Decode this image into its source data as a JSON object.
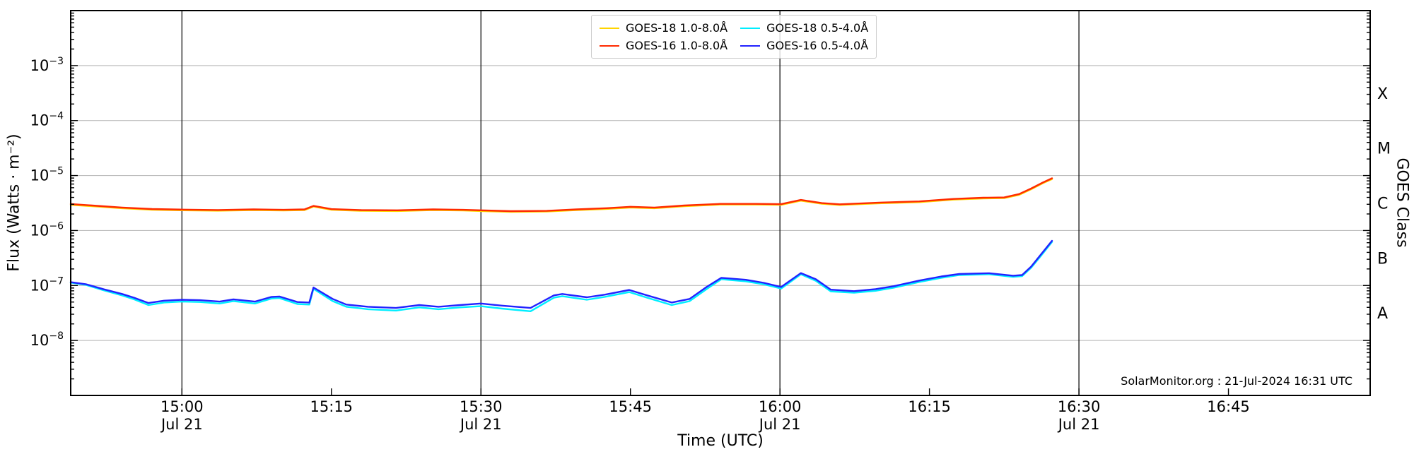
{
  "watermark": "SolarMonitor.org : 21-Jul-2024 16:31 UTC",
  "axes": {
    "x_label": "Time (UTC)",
    "y_left_label": "Flux (Watts · m⁻²)",
    "y_right_label": "GOES Class",
    "x_range_hours": [
      14.814,
      16.987
    ],
    "y_range_log10": [
      -9,
      -2
    ],
    "x_ticks": [
      {
        "hour": 15.0,
        "label": "15:00",
        "sub": "Jul 21"
      },
      {
        "hour": 15.25,
        "label": "15:15",
        "sub": ""
      },
      {
        "hour": 15.5,
        "label": "15:30",
        "sub": "Jul 21"
      },
      {
        "hour": 15.75,
        "label": "15:45",
        "sub": ""
      },
      {
        "hour": 16.0,
        "label": "16:00",
        "sub": "Jul 21"
      },
      {
        "hour": 16.25,
        "label": "16:15",
        "sub": ""
      },
      {
        "hour": 16.5,
        "label": "16:30",
        "sub": "Jul 21"
      },
      {
        "hour": 16.75,
        "label": "16:45",
        "sub": ""
      }
    ],
    "y_tick_exponents": [
      -3,
      -4,
      -5,
      -6,
      -7,
      -8
    ],
    "vertical_gridline_hours": [
      15.0,
      15.5,
      16.0,
      16.5
    ],
    "right_classes": [
      {
        "label": "X",
        "log10_mid": -3.5
      },
      {
        "label": "M",
        "log10_mid": -4.5
      },
      {
        "label": "C",
        "log10_mid": -5.5
      },
      {
        "label": "B",
        "log10_mid": -6.5
      },
      {
        "label": "A",
        "log10_mid": -7.5
      }
    ]
  },
  "colors": {
    "grid_horizontal": "#b3b3b3",
    "grid_vertical": "#111111",
    "spine": "#000000",
    "goes18_long": "#ffd400",
    "goes16_long": "#ff2a00",
    "goes18_short": "#00eeff",
    "goes16_short": "#2222ff"
  },
  "legend": {
    "entries": [
      {
        "label": "GOES-18 1.0-8.0Å",
        "color": "#ffd400"
      },
      {
        "label": "GOES-16 1.0-8.0Å",
        "color": "#ff2a00"
      },
      {
        "label": "GOES-18 0.5-4.0Å",
        "color": "#00eeff"
      },
      {
        "label": "GOES-16 0.5-4.0Å",
        "color": "#2222ff"
      }
    ]
  },
  "chart_data": {
    "type": "line",
    "title": "",
    "xlabel": "Time (UTC)",
    "ylabel": "Flux (Watts · m⁻²)",
    "x_unit": "decimal_hours_utc_2024-07-21",
    "y_scale": "log",
    "xlim_hours": [
      14.814,
      16.987
    ],
    "ylim": [
      1e-09,
      0.01
    ],
    "grid": "horizontal_decades_plus_halfhour_verticals",
    "legend_position": "top-center",
    "series": [
      {
        "name": "GOES-18 1.0-8.0Å",
        "color": "#ffd400",
        "points": [
          [
            14.814,
            2.94e-06
          ],
          [
            14.85,
            2.76e-06
          ],
          [
            14.9,
            2.54e-06
          ],
          [
            14.95,
            2.39e-06
          ],
          [
            15.0,
            2.33e-06
          ],
          [
            15.06,
            2.29e-06
          ],
          [
            15.12,
            2.35e-06
          ],
          [
            15.17,
            2.31e-06
          ],
          [
            15.205,
            2.35e-06
          ],
          [
            15.22,
            2.72e-06
          ],
          [
            15.25,
            2.38e-06
          ],
          [
            15.3,
            2.28e-06
          ],
          [
            15.36,
            2.26e-06
          ],
          [
            15.42,
            2.35e-06
          ],
          [
            15.47,
            2.31e-06
          ],
          [
            15.5,
            2.26e-06
          ],
          [
            15.55,
            2.18e-06
          ],
          [
            15.61,
            2.21e-06
          ],
          [
            15.66,
            2.35e-06
          ],
          [
            15.71,
            2.47e-06
          ],
          [
            15.75,
            2.62e-06
          ],
          [
            15.79,
            2.54e-06
          ],
          [
            15.84,
            2.76e-06
          ],
          [
            15.9,
            2.96e-06
          ],
          [
            15.96,
            2.96e-06
          ],
          [
            16.002,
            2.93e-06
          ],
          [
            16.035,
            3.49e-06
          ],
          [
            16.07,
            3.06e-06
          ],
          [
            16.1,
            2.91e-06
          ],
          [
            16.17,
            3.13e-06
          ],
          [
            16.233,
            3.28e-06
          ],
          [
            16.29,
            3.64e-06
          ],
          [
            16.34,
            3.83e-06
          ],
          [
            16.375,
            3.88e-06
          ],
          [
            16.4,
            4.46e-06
          ],
          [
            16.42,
            5.63e-06
          ],
          [
            16.44,
            7.28e-06
          ],
          [
            16.455,
            8.63e-06
          ]
        ]
      },
      {
        "name": "GOES-16 1.0-8.0Å",
        "color": "#ff2a00",
        "points": [
          [
            14.814,
            3.03e-06
          ],
          [
            14.85,
            2.85e-06
          ],
          [
            14.9,
            2.62e-06
          ],
          [
            14.95,
            2.46e-06
          ],
          [
            15.0,
            2.4e-06
          ],
          [
            15.06,
            2.36e-06
          ],
          [
            15.12,
            2.42e-06
          ],
          [
            15.17,
            2.38e-06
          ],
          [
            15.205,
            2.42e-06
          ],
          [
            15.22,
            2.8e-06
          ],
          [
            15.25,
            2.45e-06
          ],
          [
            15.3,
            2.35e-06
          ],
          [
            15.36,
            2.33e-06
          ],
          [
            15.42,
            2.42e-06
          ],
          [
            15.47,
            2.38e-06
          ],
          [
            15.5,
            2.33e-06
          ],
          [
            15.55,
            2.25e-06
          ],
          [
            15.61,
            2.28e-06
          ],
          [
            15.66,
            2.42e-06
          ],
          [
            15.71,
            2.55e-06
          ],
          [
            15.75,
            2.7e-06
          ],
          [
            15.79,
            2.62e-06
          ],
          [
            15.84,
            2.85e-06
          ],
          [
            15.9,
            3.05e-06
          ],
          [
            15.96,
            3.05e-06
          ],
          [
            16.002,
            3.02e-06
          ],
          [
            16.035,
            3.6e-06
          ],
          [
            16.07,
            3.15e-06
          ],
          [
            16.1,
            3e-06
          ],
          [
            16.17,
            3.23e-06
          ],
          [
            16.233,
            3.38e-06
          ],
          [
            16.29,
            3.75e-06
          ],
          [
            16.34,
            3.95e-06
          ],
          [
            16.375,
            4e-06
          ],
          [
            16.4,
            4.6e-06
          ],
          [
            16.42,
            5.8e-06
          ],
          [
            16.44,
            7.5e-06
          ],
          [
            16.455,
            8.9e-06
          ]
        ]
      },
      {
        "name": "GOES-18 0.5-4.0Å",
        "color": "#00eeff",
        "points": [
          [
            14.814,
            1.13e-07
          ],
          [
            14.84,
            1.02e-07
          ],
          [
            14.87,
            8.1e-08
          ],
          [
            14.9,
            6.6e-08
          ],
          [
            14.92,
            5.6e-08
          ],
          [
            14.944,
            4.4e-08
          ],
          [
            14.97,
            4.9e-08
          ],
          [
            15.0,
            5.1e-08
          ],
          [
            15.03,
            5e-08
          ],
          [
            15.063,
            4.7e-08
          ],
          [
            15.086,
            5.2e-08
          ],
          [
            15.122,
            4.7e-08
          ],
          [
            15.15,
            5.8e-08
          ],
          [
            15.163,
            5.9e-08
          ],
          [
            15.193,
            4.6e-08
          ],
          [
            15.213,
            4.5e-08
          ],
          [
            15.22,
            8.7e-08
          ],
          [
            15.252,
            5.2e-08
          ],
          [
            15.275,
            4.1e-08
          ],
          [
            15.311,
            3.7e-08
          ],
          [
            15.358,
            3.5e-08
          ],
          [
            15.397,
            4e-08
          ],
          [
            15.429,
            3.7e-08
          ],
          [
            15.465,
            4e-08
          ],
          [
            15.5,
            4.2e-08
          ],
          [
            15.535,
            3.8e-08
          ],
          [
            15.583,
            3.4e-08
          ],
          [
            15.622,
            6e-08
          ],
          [
            15.636,
            6.4e-08
          ],
          [
            15.677,
            5.5e-08
          ],
          [
            15.707,
            6.2e-08
          ],
          [
            15.748,
            7.6e-08
          ],
          [
            15.778,
            6e-08
          ],
          [
            15.819,
            4.4e-08
          ],
          [
            15.849,
            5.2e-08
          ],
          [
            15.878,
            8.7e-08
          ],
          [
            15.902,
            1.3e-07
          ],
          [
            15.943,
            1.19e-07
          ],
          [
            15.973,
            1.05e-07
          ],
          [
            16.002,
            8.8e-08
          ],
          [
            16.035,
            1.6e-07
          ],
          [
            16.06,
            1.22e-07
          ],
          [
            16.085,
            7.8e-08
          ],
          [
            16.124,
            7.4e-08
          ],
          [
            16.16,
            8e-08
          ],
          [
            16.19,
            9.1e-08
          ],
          [
            16.233,
            1.16e-07
          ],
          [
            16.27,
            1.38e-07
          ],
          [
            16.3,
            1.55e-07
          ],
          [
            16.35,
            1.6e-07
          ],
          [
            16.39,
            1.44e-07
          ],
          [
            16.405,
            1.48e-07
          ],
          [
            16.42,
            2.1e-07
          ],
          [
            16.435,
            3.3e-07
          ],
          [
            16.455,
            6.2e-07
          ]
        ]
      },
      {
        "name": "GOES-16 0.5-4.0Å",
        "color": "#2222ff",
        "points": [
          [
            14.814,
            1.15e-07
          ],
          [
            14.84,
            1.05e-07
          ],
          [
            14.87,
            8.5e-08
          ],
          [
            14.9,
            7e-08
          ],
          [
            14.92,
            6e-08
          ],
          [
            14.944,
            4.8e-08
          ],
          [
            14.97,
            5.3e-08
          ],
          [
            15.0,
            5.5e-08
          ],
          [
            15.03,
            5.4e-08
          ],
          [
            15.063,
            5.1e-08
          ],
          [
            15.086,
            5.6e-08
          ],
          [
            15.122,
            5.1e-08
          ],
          [
            15.15,
            6.2e-08
          ],
          [
            15.163,
            6.3e-08
          ],
          [
            15.193,
            5e-08
          ],
          [
            15.213,
            4.9e-08
          ],
          [
            15.22,
            9.2e-08
          ],
          [
            15.252,
            5.7e-08
          ],
          [
            15.275,
            4.5e-08
          ],
          [
            15.311,
            4.1e-08
          ],
          [
            15.358,
            3.9e-08
          ],
          [
            15.397,
            4.4e-08
          ],
          [
            15.429,
            4.1e-08
          ],
          [
            15.465,
            4.4e-08
          ],
          [
            15.5,
            4.7e-08
          ],
          [
            15.535,
            4.3e-08
          ],
          [
            15.583,
            3.9e-08
          ],
          [
            15.622,
            6.6e-08
          ],
          [
            15.636,
            7e-08
          ],
          [
            15.677,
            6.1e-08
          ],
          [
            15.707,
            6.8e-08
          ],
          [
            15.748,
            8.3e-08
          ],
          [
            15.778,
            6.6e-08
          ],
          [
            15.819,
            4.9e-08
          ],
          [
            15.849,
            5.7e-08
          ],
          [
            15.878,
            9.5e-08
          ],
          [
            15.902,
            1.38e-07
          ],
          [
            15.943,
            1.27e-07
          ],
          [
            15.973,
            1.12e-07
          ],
          [
            16.002,
            9.4e-08
          ],
          [
            16.035,
            1.68e-07
          ],
          [
            16.06,
            1.3e-07
          ],
          [
            16.085,
            8.4e-08
          ],
          [
            16.124,
            7.9e-08
          ],
          [
            16.16,
            8.6e-08
          ],
          [
            16.19,
            9.7e-08
          ],
          [
            16.233,
            1.23e-07
          ],
          [
            16.27,
            1.46e-07
          ],
          [
            16.3,
            1.62e-07
          ],
          [
            16.35,
            1.67e-07
          ],
          [
            16.39,
            1.51e-07
          ],
          [
            16.405,
            1.55e-07
          ],
          [
            16.42,
            2.2e-07
          ],
          [
            16.435,
            3.5e-07
          ],
          [
            16.455,
            6.5e-07
          ]
        ]
      }
    ]
  }
}
